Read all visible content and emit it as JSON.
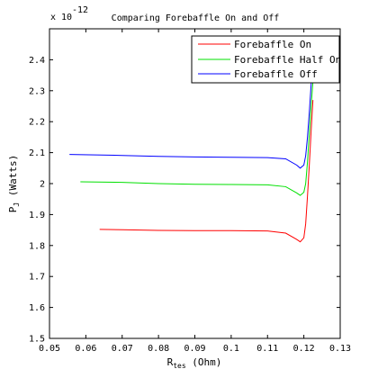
{
  "chart_data": {
    "type": "line",
    "title": "Comparing Forebaffle On and Off",
    "xlabel": {
      "main": "R",
      "sub": "tes",
      "rest": " (Ohm)"
    },
    "ylabel": {
      "main": "P",
      "sub": "J",
      "rest": " (Watts)"
    },
    "y_exponent": {
      "base": "x 10",
      "power": "-12"
    },
    "xlim": [
      0.05,
      0.13
    ],
    "ylim": [
      1.5,
      2.5
    ],
    "x_ticks": [
      0.05,
      0.06,
      0.07,
      0.08,
      0.09,
      0.1,
      0.11,
      0.12,
      0.13
    ],
    "x_tick_labels": [
      "0.05",
      "0.06",
      "0.07",
      "0.08",
      "0.09",
      "0.1",
      "0.11",
      "0.12",
      "0.13"
    ],
    "y_ticks": [
      1.5,
      1.6,
      1.7,
      1.8,
      1.9,
      2.0,
      2.1,
      2.2,
      2.3,
      2.4
    ],
    "y_tick_labels": [
      "1.5",
      "1.6",
      "1.7",
      "1.8",
      "1.9",
      "2",
      "2.1",
      "2.2",
      "2.3",
      "2.4"
    ],
    "grid": false,
    "legend_position": "top-right",
    "series": [
      {
        "name": "Forebaffle On",
        "color": "#ff0000",
        "x": [
          0.0638,
          0.07,
          0.08,
          0.09,
          0.1,
          0.11,
          0.115,
          0.118,
          0.119,
          0.12,
          0.1205,
          0.121,
          0.1215,
          0.122,
          0.1225
        ],
        "y": [
          1.852,
          1.851,
          1.849,
          1.848,
          1.848,
          1.847,
          1.84,
          1.82,
          1.812,
          1.825,
          1.87,
          1.96,
          2.06,
          2.17,
          2.27
        ]
      },
      {
        "name": "Forebaffle Half On",
        "color": "#00e000",
        "x": [
          0.0585,
          0.07,
          0.08,
          0.09,
          0.1,
          0.11,
          0.115,
          0.118,
          0.119,
          0.12,
          0.1205,
          0.121,
          0.1215,
          0.122,
          0.1225
        ],
        "y": [
          2.006,
          2.004,
          2.0,
          1.998,
          1.997,
          1.996,
          1.99,
          1.97,
          1.962,
          1.972,
          2.0,
          2.07,
          2.16,
          2.25,
          2.33
        ]
      },
      {
        "name": "Forebaffle Off",
        "color": "#0000ff",
        "x": [
          0.0555,
          0.07,
          0.08,
          0.09,
          0.1,
          0.11,
          0.115,
          0.118,
          0.119,
          0.12,
          0.1205,
          0.121,
          0.1215,
          0.122,
          0.1225
        ],
        "y": [
          2.094,
          2.091,
          2.088,
          2.086,
          2.085,
          2.084,
          2.08,
          2.06,
          2.05,
          2.06,
          2.09,
          2.15,
          2.23,
          2.32,
          2.4
        ]
      }
    ]
  }
}
